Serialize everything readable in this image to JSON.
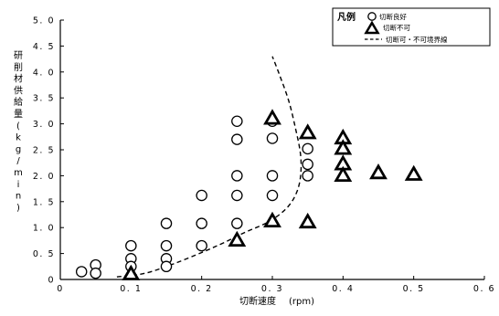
{
  "chart_data": {
    "type": "scatter",
    "title": "",
    "xlabel": "切断速度",
    "xlabel_unit": "(rpm)",
    "ylabel_chars": [
      "研",
      "削",
      "材",
      "供",
      "給",
      "量",
      "(",
      "k",
      "g",
      "/",
      "m",
      "i",
      "n",
      ")"
    ],
    "xlim": [
      0,
      0.6
    ],
    "ylim": [
      0,
      5.0
    ],
    "x_ticks": [
      0,
      0.1,
      0.2,
      0.3,
      0.4,
      0.5,
      0.6
    ],
    "x_tick_labels": [
      "0",
      "0. 1",
      "0. 2",
      "0. 3",
      "0. 4",
      "0. 5",
      "0. 6"
    ],
    "y_ticks": [
      0,
      0.5,
      1.0,
      1.5,
      2.0,
      2.5,
      3.0,
      3.5,
      4.0,
      4.5,
      5.0
    ],
    "y_tick_labels": [
      "0",
      "0. 5",
      "1. 0",
      "1. 5",
      "2. 0",
      "2. 5",
      "3. 0",
      "3. 5",
      "4. 0",
      "4. 5",
      "5. 0"
    ],
    "grid": false,
    "legend_position": "top-right",
    "legend": {
      "title": "凡例",
      "entries": [
        {
          "marker": "circle",
          "label": "切断良好"
        },
        {
          "marker": "triangle",
          "label": "切断不可"
        },
        {
          "marker": "dashed-line",
          "label": "切断可・不可境界線"
        }
      ]
    },
    "series": [
      {
        "name": "切断良好",
        "marker": "circle",
        "points": [
          {
            "x": 0.03,
            "y": 0.15
          },
          {
            "x": 0.05,
            "y": 0.28
          },
          {
            "x": 0.05,
            "y": 0.12
          },
          {
            "x": 0.1,
            "y": 0.65
          },
          {
            "x": 0.1,
            "y": 0.4
          },
          {
            "x": 0.1,
            "y": 0.25
          },
          {
            "x": 0.15,
            "y": 1.08
          },
          {
            "x": 0.15,
            "y": 0.65
          },
          {
            "x": 0.15,
            "y": 0.4
          },
          {
            "x": 0.15,
            "y": 0.25
          },
          {
            "x": 0.2,
            "y": 1.62
          },
          {
            "x": 0.2,
            "y": 1.08
          },
          {
            "x": 0.2,
            "y": 0.65
          },
          {
            "x": 0.25,
            "y": 3.05
          },
          {
            "x": 0.25,
            "y": 2.7
          },
          {
            "x": 0.25,
            "y": 2.0
          },
          {
            "x": 0.25,
            "y": 1.62
          },
          {
            "x": 0.25,
            "y": 1.08
          },
          {
            "x": 0.3,
            "y": 3.05
          },
          {
            "x": 0.3,
            "y": 2.72
          },
          {
            "x": 0.3,
            "y": 2.0
          },
          {
            "x": 0.3,
            "y": 1.62
          },
          {
            "x": 0.35,
            "y": 2.52
          },
          {
            "x": 0.35,
            "y": 2.22
          },
          {
            "x": 0.35,
            "y": 2.0
          }
        ]
      },
      {
        "name": "切断不可",
        "marker": "triangle",
        "points": [
          {
            "x": 0.1,
            "y": 0.1
          },
          {
            "x": 0.25,
            "y": 0.75
          },
          {
            "x": 0.3,
            "y": 3.1
          },
          {
            "x": 0.3,
            "y": 1.12
          },
          {
            "x": 0.35,
            "y": 2.82
          },
          {
            "x": 0.35,
            "y": 1.1
          },
          {
            "x": 0.4,
            "y": 2.72
          },
          {
            "x": 0.4,
            "y": 2.52
          },
          {
            "x": 0.4,
            "y": 2.22
          },
          {
            "x": 0.4,
            "y": 2.0
          },
          {
            "x": 0.45,
            "y": 2.05
          },
          {
            "x": 0.5,
            "y": 2.02
          }
        ]
      },
      {
        "name": "切断可・不可境界線",
        "marker": "dashed-line",
        "points": [
          {
            "x": 0.08,
            "y": 0.05
          },
          {
            "x": 0.12,
            "y": 0.12
          },
          {
            "x": 0.16,
            "y": 0.3
          },
          {
            "x": 0.2,
            "y": 0.52
          },
          {
            "x": 0.23,
            "y": 0.7
          },
          {
            "x": 0.26,
            "y": 0.9
          },
          {
            "x": 0.29,
            "y": 1.08
          },
          {
            "x": 0.31,
            "y": 1.25
          },
          {
            "x": 0.325,
            "y": 1.45
          },
          {
            "x": 0.335,
            "y": 1.7
          },
          {
            "x": 0.34,
            "y": 2.0
          },
          {
            "x": 0.34,
            "y": 2.4
          },
          {
            "x": 0.333,
            "y": 2.9
          },
          {
            "x": 0.323,
            "y": 3.45
          },
          {
            "x": 0.31,
            "y": 3.95
          },
          {
            "x": 0.3,
            "y": 4.3
          }
        ]
      }
    ]
  }
}
